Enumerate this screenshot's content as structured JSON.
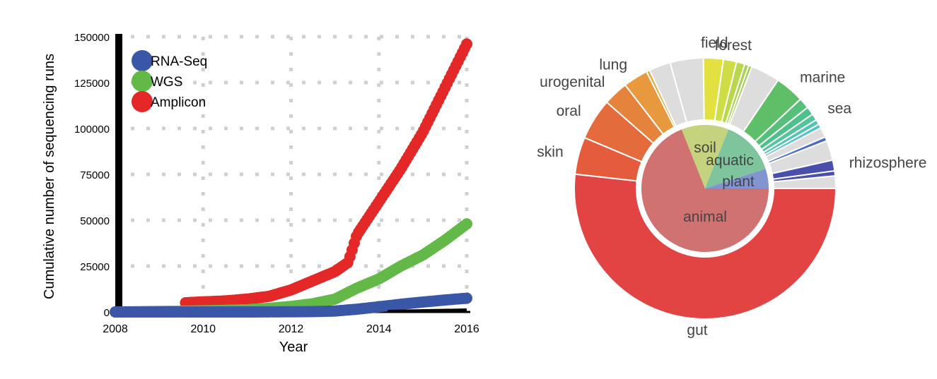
{
  "chart_data": [
    {
      "type": "line",
      "xlabel": "Year",
      "ylabel": "Cumulative number of sequencing runs",
      "xlim": [
        2008,
        2016
      ],
      "ylim": [
        0,
        150000
      ],
      "x_ticks": [
        "2008",
        "2010",
        "2012",
        "2014",
        "2016"
      ],
      "y_ticks": [
        "0",
        "25000",
        "50000",
        "75000",
        "100000",
        "125000",
        "150000"
      ],
      "grid": true,
      "legend_position": "top-left",
      "series": [
        {
          "name": "RNA-Seq",
          "color": "#3a57a7",
          "start": 2008,
          "x": [
            2008,
            2009,
            2010,
            2011,
            2012,
            2012.5,
            2013,
            2013.5,
            2014,
            2014.5,
            2015,
            2015.5,
            2016
          ],
          "y": [
            0,
            0,
            0,
            0,
            100,
            200,
            500,
            1500,
            2800,
            4200,
            5400,
            6500,
            7500
          ]
        },
        {
          "name": "WGS",
          "color": "#63b947",
          "start": 2008,
          "x": [
            2008,
            2009,
            2010,
            2011,
            2011.5,
            2012,
            2012.5,
            2013,
            2013.5,
            2014,
            2014.5,
            2015,
            2015.5,
            2016
          ],
          "y": [
            0,
            300,
            600,
            1200,
            2000,
            3000,
            4500,
            7000,
            13000,
            18000,
            25000,
            31000,
            39000,
            48000
          ]
        },
        {
          "name": "Amplicon",
          "color": "#e42727",
          "start": 2009.6,
          "x": [
            2009.6,
            2010,
            2010.5,
            2011,
            2011.5,
            2012,
            2012.5,
            2013,
            2013.3,
            2013.5,
            2014,
            2014.5,
            2015,
            2015.5,
            2016
          ],
          "y": [
            5000,
            5500,
            6000,
            7000,
            8500,
            12000,
            17000,
            22000,
            27000,
            42000,
            60000,
            78000,
            98000,
            122000,
            146000
          ]
        }
      ]
    },
    {
      "type": "pie",
      "variant": "sunburst",
      "inner": [
        {
          "label": "animal",
          "value": 69,
          "color": "#d17272"
        },
        {
          "label": "soil",
          "value": 12,
          "color": "#c5d27e"
        },
        {
          "label": "aquatic",
          "value": 14,
          "color": "#7ec59e"
        },
        {
          "label": "plant",
          "value": 5,
          "color": "#8395d1"
        }
      ],
      "outer": [
        {
          "label": "gut",
          "value": 50.5,
          "color": "#e24444"
        },
        {
          "label": "skin",
          "value": 4.5,
          "color": "#e45c3c"
        },
        {
          "label": "oral",
          "value": 5,
          "color": "#e46b3c"
        },
        {
          "label": "urogenital",
          "value": 3,
          "color": "#e5823c"
        },
        {
          "label": "lung",
          "value": 3,
          "color": "#e8993d"
        },
        {
          "label": "",
          "value": 0.4,
          "color": "#e9a63d"
        },
        {
          "label": "",
          "value": 2.6,
          "color": "#dddddd"
        },
        {
          "label": "",
          "value": 4,
          "color": "#dddddd"
        },
        {
          "label": "field",
          "value": 2.4,
          "color": "#e3e041"
        },
        {
          "label": "forest",
          "value": 1.6,
          "color": "#cedd46"
        },
        {
          "label": "",
          "value": 1,
          "color": "#b9d74a"
        },
        {
          "label": "",
          "value": 0.5,
          "color": "#a7d24d"
        },
        {
          "label": "",
          "value": 0.4,
          "color": "#a0cf50"
        },
        {
          "label": "",
          "value": 3.5,
          "color": "#dddddd"
        },
        {
          "label": "marine",
          "value": 3.5,
          "color": "#5fbf68"
        },
        {
          "label": "",
          "value": 1.3,
          "color": "#56c07a"
        },
        {
          "label": "",
          "value": 1,
          "color": "#4ec08b"
        },
        {
          "label": "sea",
          "value": 0.8,
          "color": "#55c49c"
        },
        {
          "label": "",
          "value": 0.6,
          "color": "#52c4b0"
        },
        {
          "label": "",
          "value": 0.5,
          "color": "#4fc3c7"
        },
        {
          "label": "",
          "value": 1.2,
          "color": "#dddddd"
        },
        {
          "label": "",
          "value": 0.5,
          "color": "#4a6ec2"
        },
        {
          "label": "",
          "value": 2.4,
          "color": "#dddddd"
        },
        {
          "label": "rhizosphere",
          "value": 1.3,
          "color": "#4a4fad"
        },
        {
          "label": "",
          "value": 0.6,
          "color": "#4a4fad"
        },
        {
          "label": "",
          "value": 1.5,
          "color": "#dddddd"
        }
      ]
    }
  ]
}
